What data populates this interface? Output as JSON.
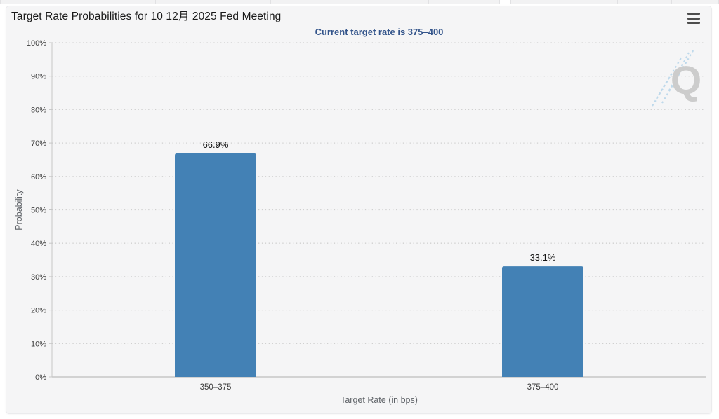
{
  "window": {
    "title": "Target Rate Probabilities for 10 12月 2025 Fed Meeting",
    "subtitle": "Current target rate is 375–400",
    "watermark_letter": "Q",
    "icons": {
      "menu": "hamburger-icon",
      "watermark": "q-watermark"
    }
  },
  "colors": {
    "bar": "#4381b5",
    "subtitle_text": "#34558b",
    "card_background": "#f5f5f6",
    "gridline": "#cfcfcf",
    "axis_line": "#c6c6c6",
    "tick_label": "#3c3c3c",
    "value_label": "#141414",
    "axis_title": "#5f6368",
    "watermark_letter_color": "#c8c8c8",
    "watermark_dash_color": "#b9d6ea"
  },
  "chart_data": {
    "type": "bar",
    "title": "Target Rate Probabilities for 10 12月 2025 Fed Meeting",
    "subtitle": "Current target rate is 375–400",
    "categories": [
      "350–375",
      "375–400"
    ],
    "values": [
      66.9,
      33.1
    ],
    "value_labels": [
      "66.9%",
      "33.1%"
    ],
    "xlabel": "Target Rate (in bps)",
    "ylabel": "Probability",
    "ylim": [
      0,
      100
    ],
    "ytick_step": 10,
    "ytick_labels": [
      "0%",
      "10%",
      "20%",
      "30%",
      "40%",
      "50%",
      "60%",
      "70%",
      "80%",
      "90%",
      "100%"
    ],
    "grid": "horizontal-dotted",
    "legend": "none",
    "bar_color": "#4381b5"
  }
}
